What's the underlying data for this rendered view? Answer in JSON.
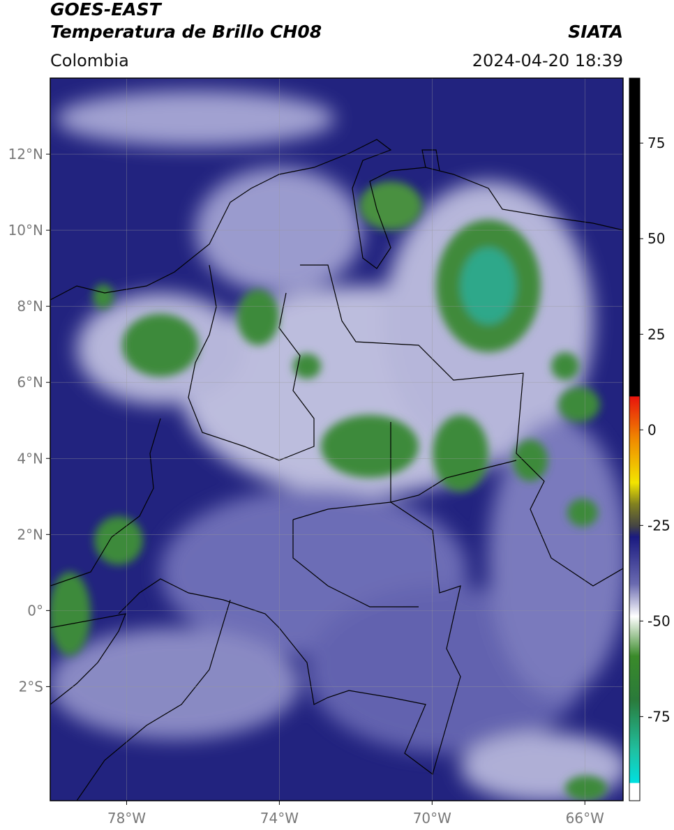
{
  "header": {
    "title": "GOES-EAST",
    "subtitle": "Temperatura de Brillo CH08",
    "region": "Colombia",
    "source": "SIATA",
    "datetime": "2024-04-20 18:39"
  },
  "map": {
    "xlim": [
      -80,
      -65
    ],
    "ylim": [
      -5,
      14
    ],
    "grid": true,
    "xticks": [
      {
        "value": -78,
        "label": "78°W"
      },
      {
        "value": -74,
        "label": "74°W"
      },
      {
        "value": -70,
        "label": "70°W"
      },
      {
        "value": -66,
        "label": "66°W"
      }
    ],
    "yticks": [
      {
        "value": 12,
        "label": "12°N"
      },
      {
        "value": 10,
        "label": "10°N"
      },
      {
        "value": 8,
        "label": "8°N"
      },
      {
        "value": 6,
        "label": "6°N"
      },
      {
        "value": 4,
        "label": "4°N"
      },
      {
        "value": 2,
        "label": "2°N"
      },
      {
        "value": 0,
        "label": "0°"
      },
      {
        "value": -2,
        "label": "2°S"
      }
    ]
  },
  "colorbar": {
    "lim": [
      -97,
      92
    ],
    "ticks": [
      75,
      50,
      25,
      0,
      -25,
      -50,
      -75
    ]
  }
}
